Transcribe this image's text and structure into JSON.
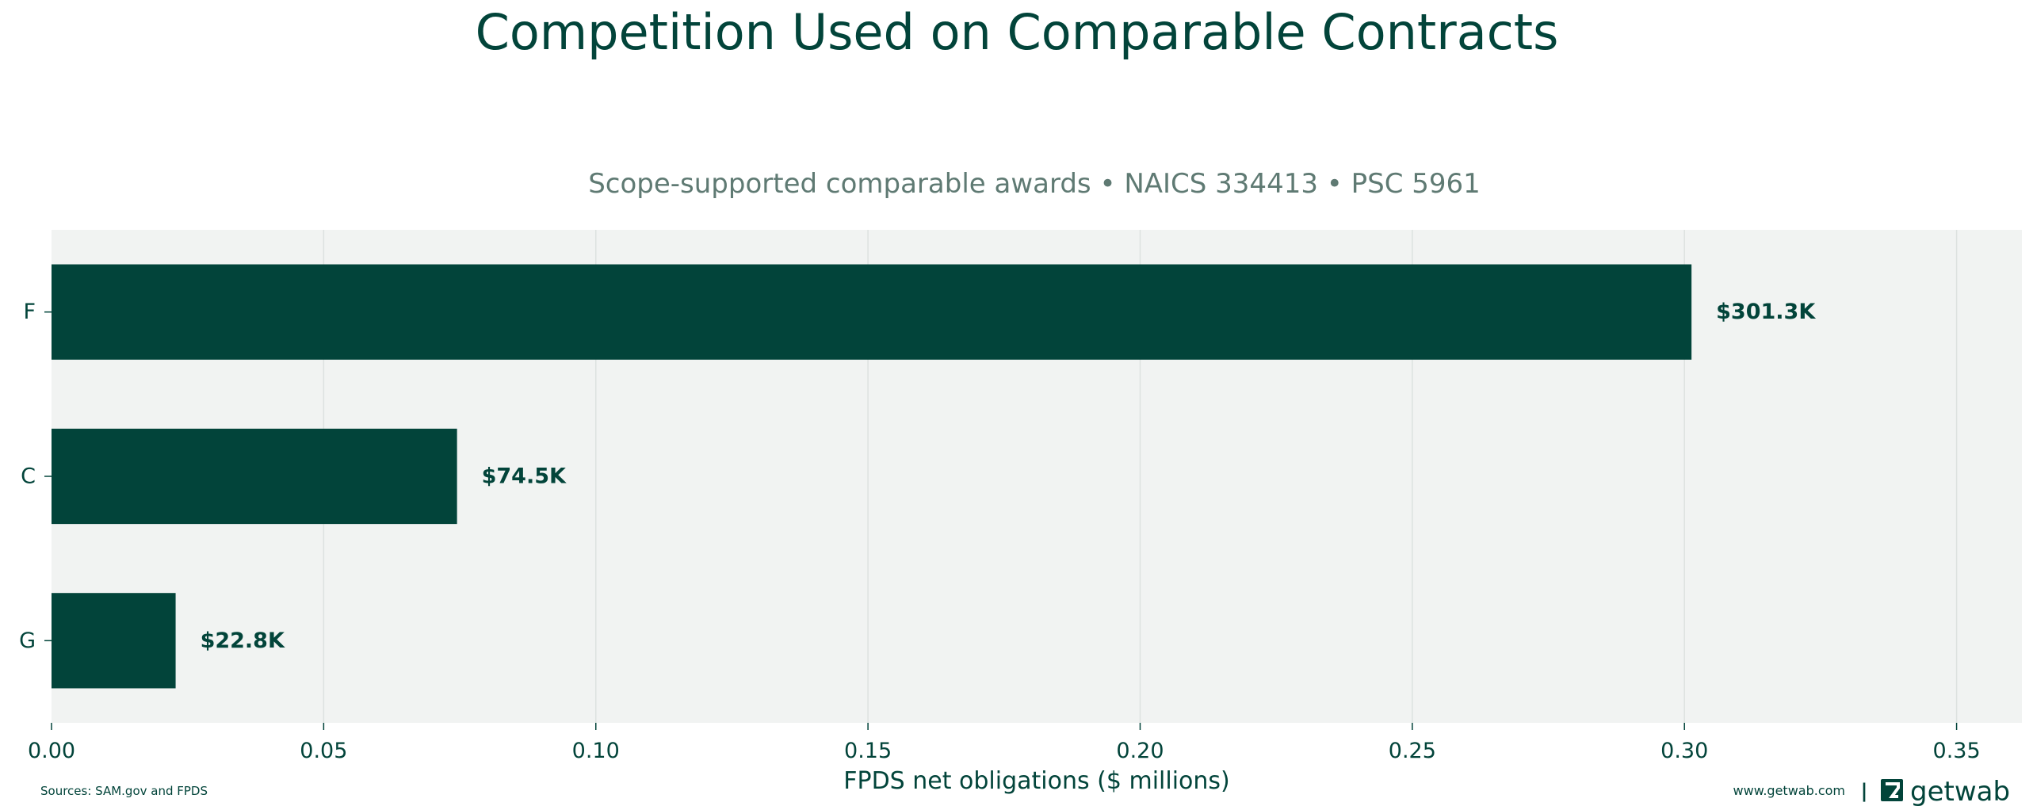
{
  "chart_data": {
    "type": "bar",
    "orientation": "horizontal",
    "title": "Competition Used on Comparable Contracts",
    "subtitle": "Scope-supported comparable awards • NAICS 334413 • PSC 5961",
    "xlabel": "FPDS net obligations ($ millions)",
    "ylabel": "",
    "categories": [
      "F",
      "C",
      "G"
    ],
    "values": [
      0.3013,
      0.0745,
      0.0228
    ],
    "data_labels": [
      "$301.3K",
      "$74.5K",
      "$22.8K"
    ],
    "xlim": [
      0,
      0.362
    ],
    "xticks": [
      0.0,
      0.05,
      0.1,
      0.15,
      0.2,
      0.25,
      0.3,
      0.35
    ],
    "xtick_labels": [
      "0.00",
      "0.05",
      "0.10",
      "0.15",
      "0.20",
      "0.25",
      "0.30",
      "0.35"
    ],
    "grid": "vertical",
    "legend": "none",
    "colors": {
      "bar": "#02443a",
      "title": "#02443a",
      "subtitle": "#5f7a73",
      "plot_background": "#f1f3f2",
      "gridline": "#dde2e0",
      "axis_text": "#02443a"
    }
  },
  "footer": {
    "sources": "Sources: SAM.gov and FPDS",
    "website": "www.getwab.com",
    "separator": "|",
    "brand": "getwab"
  },
  "icons": {
    "brand_logo": "getwab-logo-icon"
  }
}
